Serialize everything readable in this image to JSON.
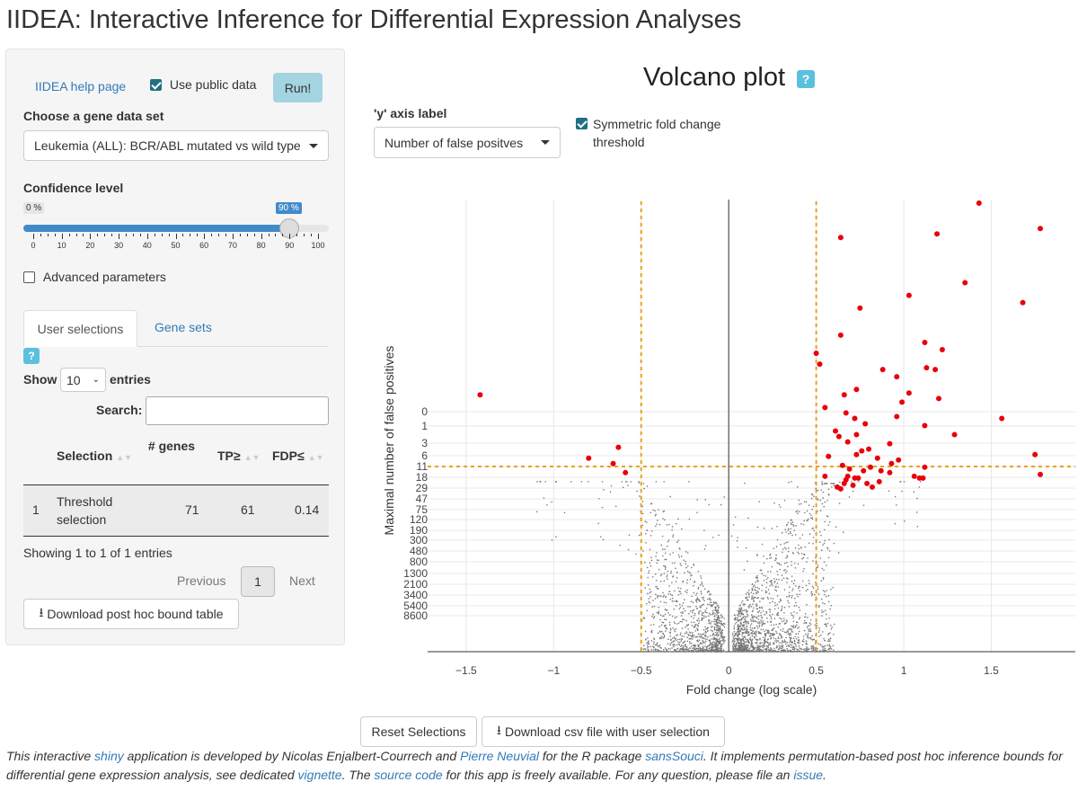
{
  "app_title": "IIDEA: Interactive Inference for Differential Expression Analyses",
  "sidebar": {
    "help_link": "IIDEA help page",
    "use_public_label": "Use public data",
    "use_public_checked": true,
    "run_label": "Run!",
    "gene_set_label": "Choose a gene data set",
    "gene_set_value": "Leukemia (ALL): BCR/ABL mutated vs wild type",
    "confidence_label": "Confidence level",
    "slider": {
      "min_tag": "0 %",
      "value_tag": "90 %",
      "value": 90,
      "ticks": [
        "0",
        "10",
        "20",
        "30",
        "40",
        "50",
        "60",
        "70",
        "80",
        "90",
        "100"
      ]
    },
    "advanced_label": "Advanced parameters",
    "advanced_checked": false,
    "tabs": [
      "User selections",
      "Gene sets"
    ],
    "help_glyph": "?",
    "show_label": "Show",
    "entries_value": "10",
    "entries_label": "entries",
    "search_label": "Search:",
    "search_value": "",
    "table": {
      "headers": [
        "Selection",
        "# genes",
        "TP≥",
        "FDP≤"
      ],
      "rows": [
        [
          "1",
          "Threshold selection",
          "71",
          "61",
          "0.14"
        ]
      ]
    },
    "info": "Showing 1 to 1 of 1 entries",
    "prev_label": "Previous",
    "page_label": "1",
    "next_label": "Next",
    "download_bound_label": "Download post hoc bound table"
  },
  "main": {
    "title": "Volcano plot",
    "help_glyph": "?",
    "y_axis_label_title": "'y' axis label",
    "y_axis_select": "Number of false positves",
    "symmetric_label": "Symmetric fold change threshold",
    "symmetric_checked": true,
    "reset_label": "Reset Selections",
    "download_csv_label": "Download csv file with user selection"
  },
  "chart_data": {
    "type": "scatter",
    "xlabel": "Fold change (log scale)",
    "ylabel": "Maximal number of false positives",
    "x_ticks": [
      "−1.5",
      "−1",
      "−0.5",
      "0",
      "0.5",
      "1",
      "1.5"
    ],
    "x_tick_values": [
      -1.5,
      -1,
      -0.5,
      0,
      0.5,
      1,
      1.5
    ],
    "y_ticks": [
      "0",
      "1",
      "3",
      "6",
      "11",
      "18",
      "29",
      "47",
      "75",
      "120",
      "190",
      "300",
      "480",
      "800",
      "1300",
      "2100",
      "3400",
      "5400",
      "8600"
    ],
    "xlim": [
      -1.72,
      1.98
    ],
    "grid": true,
    "thresholds": {
      "fold_change": [
        -0.5,
        0.5
      ],
      "y_tick": "11",
      "color": "#e8a317"
    },
    "colors": {
      "selected": "#e8000b",
      "other": "#777777",
      "threshold": "#e8a317"
    },
    "selected_points": [
      [
        -1.42,
        14.2
      ],
      [
        -0.63,
        11.3
      ],
      [
        -0.8,
        10.7
      ],
      [
        -0.66,
        10.4
      ],
      [
        -0.59,
        9.9
      ],
      [
        1.43,
        24.8
      ],
      [
        1.78,
        23.4
      ],
      [
        0.64,
        22.9
      ],
      [
        1.19,
        23.1
      ],
      [
        1.03,
        19.7
      ],
      [
        1.35,
        20.4
      ],
      [
        1.68,
        19.3
      ],
      [
        0.75,
        19.0
      ],
      [
        0.64,
        17.5
      ],
      [
        1.12,
        17.1
      ],
      [
        1.22,
        16.7
      ],
      [
        0.5,
        16.5
      ],
      [
        0.52,
        15.9
      ],
      [
        1.13,
        15.7
      ],
      [
        1.18,
        15.6
      ],
      [
        0.88,
        15.6
      ],
      [
        0.96,
        15.2
      ],
      [
        0.73,
        14.5
      ],
      [
        1.03,
        14.3
      ],
      [
        0.66,
        14.2
      ],
      [
        1.2,
        14.0
      ],
      [
        0.99,
        13.8
      ],
      [
        0.55,
        13.5
      ],
      [
        0.67,
        13.2
      ],
      [
        0.72,
        12.9
      ],
      [
        0.96,
        13.0
      ],
      [
        1.56,
        12.9
      ],
      [
        1.12,
        12.5
      ],
      [
        0.78,
        12.6
      ],
      [
        0.61,
        12.2
      ],
      [
        0.73,
        12.0
      ],
      [
        1.29,
        12.0
      ],
      [
        0.63,
        11.9
      ],
      [
        0.68,
        11.6
      ],
      [
        0.92,
        11.5
      ],
      [
        0.8,
        11.2
      ],
      [
        0.76,
        11.1
      ],
      [
        0.57,
        10.8
      ],
      [
        0.73,
        10.9
      ],
      [
        1.75,
        10.9
      ],
      [
        0.85,
        10.7
      ],
      [
        0.97,
        10.6
      ],
      [
        0.93,
        10.4
      ],
      [
        0.65,
        10.3
      ],
      [
        0.69,
        10.1
      ],
      [
        0.77,
        10.0
      ],
      [
        0.81,
        10.2
      ],
      [
        0.87,
        10.0
      ],
      [
        1.12,
        10.2
      ],
      [
        0.68,
        9.7
      ],
      [
        0.92,
        9.9
      ],
      [
        0.72,
        9.6
      ],
      [
        1.78,
        9.8
      ],
      [
        1.11,
        9.6
      ],
      [
        0.55,
        9.7
      ],
      [
        0.67,
        9.5
      ],
      [
        0.74,
        9.6
      ],
      [
        0.86,
        9.4
      ],
      [
        1.06,
        9.7
      ],
      [
        0.79,
        9.3
      ],
      [
        0.62,
        9.1
      ],
      [
        1.09,
        9.6
      ],
      [
        0.66,
        9.3
      ],
      [
        0.71,
        9.2
      ],
      [
        0.82,
        9.1
      ],
      [
        0.64,
        9.0
      ]
    ]
  }
}
